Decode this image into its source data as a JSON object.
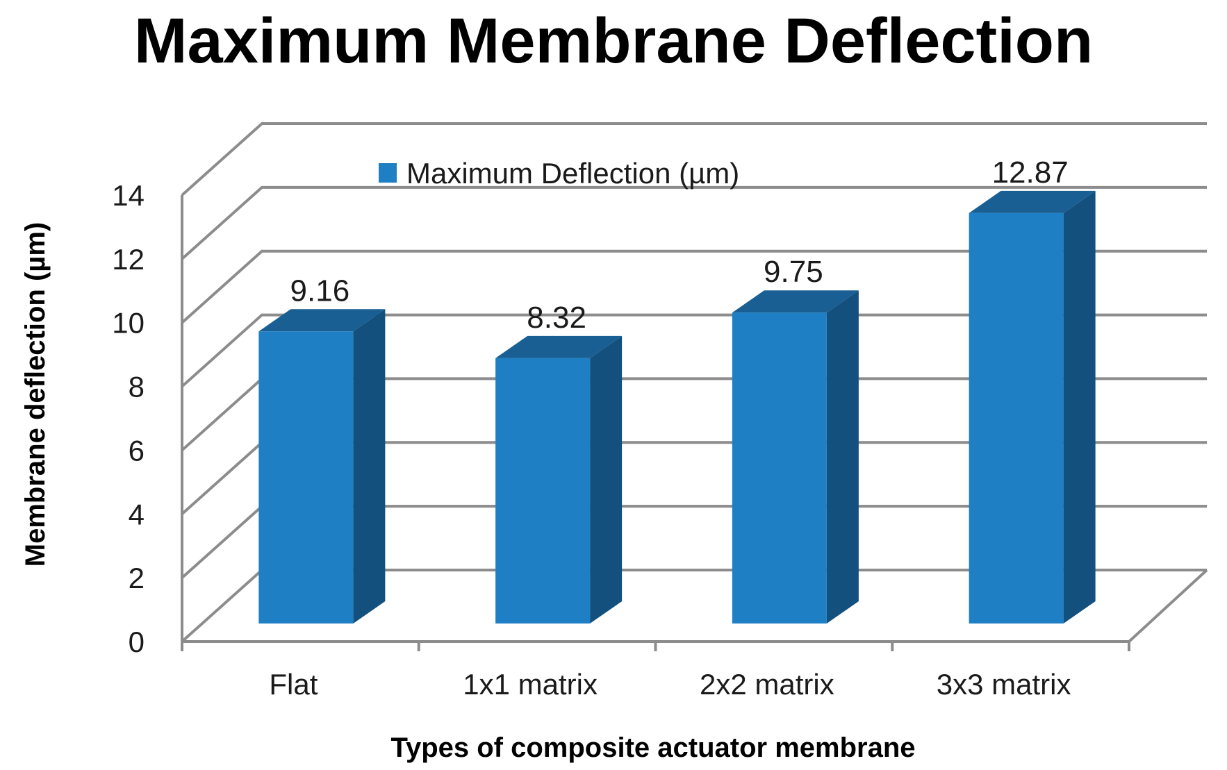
{
  "chart_data": {
    "type": "bar",
    "title": "Maximum Membrane Deflection",
    "xlabel": "Types of composite actuator membrane",
    "ylabel": "Membrane deflection (µm)",
    "categories": [
      "Flat",
      "1x1 matrix",
      "2x2 matrix",
      "3x3 matrix"
    ],
    "series": [
      {
        "name": "Maximum Deflection (µm)",
        "values": [
          9.16,
          8.32,
          9.75,
          12.87
        ],
        "labels": [
          "9.16",
          "8.32",
          "9.75",
          "12.87"
        ],
        "color": "#1f7fc4"
      }
    ],
    "yticks": [
      "0",
      "2",
      "4",
      "6",
      "8",
      "10",
      "12",
      "14"
    ],
    "ylim": [
      0,
      14
    ],
    "ystep": 2,
    "grid": true,
    "legend": "top-center",
    "style": "3d-column"
  }
}
